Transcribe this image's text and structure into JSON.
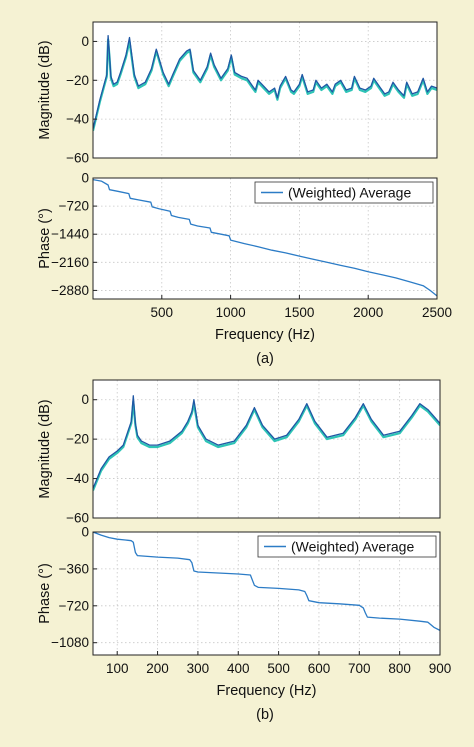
{
  "chart_data": [
    {
      "id": "a-magnitude",
      "type": "line",
      "ylabel": "Magnitude (dB)",
      "xlim": [
        0,
        2500
      ],
      "ylim": [
        -60,
        10
      ],
      "yticks": [
        0,
        -20,
        -40,
        -60
      ],
      "grid": true,
      "series": [
        {
          "color": "#2ec4b6",
          "x": [
            0,
            50,
            100,
            110,
            120,
            130,
            150,
            175,
            200,
            240,
            265,
            300,
            330,
            380,
            425,
            460,
            510,
            550,
            580,
            630,
            680,
            705,
            730,
            780,
            830,
            855,
            880,
            930,
            980,
            1005,
            1030,
            1080,
            1120,
            1160,
            1180,
            1200,
            1240,
            1280,
            1320,
            1340,
            1360,
            1400,
            1440,
            1460,
            1500,
            1520,
            1560,
            1600,
            1620,
            1660,
            1700,
            1740,
            1760,
            1800,
            1840,
            1880,
            1900,
            1940,
            1980,
            2020,
            2040,
            2080,
            2120,
            2150,
            2180,
            2220,
            2260,
            2280,
            2320,
            2360,
            2400,
            2430,
            2460,
            2500
          ],
          "y": [
            -46,
            -31,
            -18,
            1,
            -8,
            -19,
            -23,
            -22,
            -17,
            -8,
            0,
            -18,
            -24,
            -22,
            -15,
            -5,
            -17,
            -23,
            -18,
            -10,
            -6,
            -5,
            -16,
            -21,
            -14,
            -7,
            -13,
            -20,
            -15,
            -8,
            -17,
            -19,
            -20,
            -24,
            -26,
            -21,
            -24,
            -27,
            -25,
            -30,
            -24,
            -19,
            -26,
            -27,
            -23,
            -18,
            -27,
            -26,
            -21,
            -25,
            -23,
            -27,
            -23,
            -21,
            -26,
            -25,
            -19,
            -25,
            -26,
            -24,
            -20,
            -24,
            -28,
            -27,
            -22,
            -26,
            -29,
            -22,
            -28,
            -27,
            -20,
            -27,
            -24,
            -25
          ]
        },
        {
          "color": "#1f57a4",
          "x": [
            0,
            50,
            100,
            110,
            120,
            130,
            150,
            175,
            200,
            240,
            265,
            300,
            330,
            380,
            425,
            460,
            510,
            550,
            580,
            630,
            680,
            705,
            730,
            780,
            830,
            855,
            880,
            930,
            980,
            1005,
            1030,
            1080,
            1120,
            1160,
            1180,
            1200,
            1240,
            1280,
            1320,
            1340,
            1360,
            1400,
            1440,
            1460,
            1500,
            1520,
            1560,
            1600,
            1620,
            1660,
            1700,
            1740,
            1760,
            1800,
            1840,
            1880,
            1900,
            1940,
            1980,
            2020,
            2040,
            2080,
            2120,
            2150,
            2180,
            2220,
            2260,
            2280,
            2320,
            2360,
            2400,
            2430,
            2460,
            2500
          ],
          "y": [
            -45,
            -30,
            -17,
            3,
            -7,
            -18,
            -22,
            -21,
            -16,
            -7,
            2,
            -17,
            -23,
            -21,
            -14,
            -4,
            -16,
            -22,
            -17,
            -9,
            -5,
            -4,
            -15,
            -20,
            -13,
            -6,
            -12,
            -19,
            -14,
            -7,
            -16,
            -18,
            -19,
            -23,
            -25,
            -20,
            -23,
            -26,
            -24,
            -29,
            -23,
            -18,
            -25,
            -26,
            -22,
            -17,
            -26,
            -25,
            -20,
            -24,
            -22,
            -26,
            -22,
            -20,
            -25,
            -24,
            -18,
            -24,
            -25,
            -23,
            -19,
            -23,
            -27,
            -26,
            -21,
            -25,
            -28,
            -21,
            -27,
            -26,
            -19,
            -26,
            -23,
            -24
          ]
        }
      ]
    },
    {
      "id": "a-phase",
      "type": "line",
      "ylabel": "Phase (°)",
      "xlabel": "Frequency (Hz)",
      "xlim": [
        0,
        2500
      ],
      "ylim": [
        -3100,
        0
      ],
      "xticks": [
        500,
        1000,
        1500,
        2000,
        2500
      ],
      "yticks": [
        0,
        -720,
        -1440,
        -2160,
        -2880
      ],
      "ytick_labels": [
        "0",
        "−720",
        "−1440",
        "−2160",
        "−2880"
      ],
      "grid": true,
      "legend_position": "top-right",
      "series": [
        {
          "name": "(Weighted) Average",
          "color": "#2c7cc6",
          "x": [
            0,
            60,
            110,
            120,
            180,
            260,
            270,
            330,
            420,
            430,
            480,
            560,
            570,
            620,
            700,
            710,
            760,
            850,
            860,
            930,
            990,
            1000,
            1100,
            1200,
            1300,
            1400,
            1500,
            1600,
            1700,
            1800,
            1900,
            2000,
            2100,
            2200,
            2300,
            2400,
            2450,
            2500
          ],
          "y": [
            -40,
            -80,
            -180,
            -300,
            -340,
            -400,
            -520,
            -560,
            -620,
            -740,
            -790,
            -850,
            -960,
            -1010,
            -1060,
            -1180,
            -1230,
            -1280,
            -1390,
            -1440,
            -1480,
            -1590,
            -1680,
            -1760,
            -1850,
            -1920,
            -2000,
            -2080,
            -2160,
            -2240,
            -2310,
            -2400,
            -2480,
            -2560,
            -2660,
            -2760,
            -2880,
            -3020
          ]
        }
      ]
    },
    {
      "id": "b-magnitude",
      "type": "line",
      "ylabel": "Magnitude (dB)",
      "xlim": [
        40,
        900
      ],
      "ylim": [
        -60,
        10
      ],
      "yticks": [
        0,
        -20,
        -40,
        -60
      ],
      "grid": true,
      "series": [
        {
          "color": "#2ec4b6",
          "x": [
            40,
            60,
            80,
            100,
            115,
            125,
            135,
            140,
            145,
            150,
            160,
            180,
            200,
            230,
            260,
            275,
            285,
            290,
            300,
            320,
            350,
            390,
            420,
            440,
            460,
            490,
            520,
            550,
            570,
            590,
            620,
            660,
            690,
            710,
            730,
            760,
            800,
            830,
            850,
            870,
            900
          ],
          "y": [
            -46,
            -36,
            -30,
            -27,
            -24,
            -18,
            -12,
            -1,
            -13,
            -19,
            -22,
            -24,
            -24,
            -22,
            -17,
            -12,
            -7,
            -2,
            -14,
            -21,
            -24,
            -22,
            -14,
            -5,
            -14,
            -21,
            -19,
            -11,
            -3,
            -12,
            -20,
            -18,
            -10,
            -3,
            -11,
            -19,
            -17,
            -9,
            -3,
            -6,
            -13
          ]
        },
        {
          "color": "#1f57a4",
          "x": [
            40,
            60,
            80,
            100,
            115,
            125,
            135,
            140,
            145,
            150,
            160,
            180,
            200,
            230,
            260,
            275,
            285,
            290,
            300,
            320,
            350,
            390,
            420,
            440,
            460,
            490,
            520,
            550,
            570,
            590,
            620,
            660,
            690,
            710,
            730,
            760,
            800,
            830,
            850,
            870,
            900
          ],
          "y": [
            -45,
            -35,
            -29,
            -26,
            -23,
            -17,
            -11,
            2,
            -12,
            -18,
            -21,
            -23,
            -23,
            -21,
            -16,
            -11,
            -6,
            0,
            -13,
            -20,
            -23,
            -21,
            -13,
            -4,
            -13,
            -20,
            -18,
            -10,
            -2,
            -11,
            -19,
            -17,
            -9,
            -2,
            -10,
            -18,
            -16,
            -8,
            -2,
            -5,
            -12
          ]
        }
      ]
    },
    {
      "id": "b-phase",
      "type": "line",
      "ylabel": "Phase (°)",
      "xlabel": "Frequency (Hz)",
      "xlim": [
        40,
        900
      ],
      "ylim": [
        -1200,
        0
      ],
      "xticks": [
        100,
        200,
        300,
        400,
        500,
        600,
        700,
        800,
        900
      ],
      "yticks": [
        0,
        -360,
        -720,
        -1080
      ],
      "ytick_labels": [
        "0",
        "−360",
        "−720",
        "−1080"
      ],
      "grid": true,
      "legend_position": "top-right",
      "series": [
        {
          "name": "(Weighted) Average",
          "color": "#2c7cc6",
          "x": [
            40,
            60,
            80,
            100,
            120,
            135,
            140,
            145,
            150,
            200,
            250,
            280,
            285,
            290,
            300,
            350,
            400,
            430,
            435,
            440,
            450,
            500,
            550,
            565,
            570,
            575,
            600,
            650,
            700,
            710,
            715,
            720,
            750,
            800,
            850,
            870,
            885,
            900
          ],
          "y": [
            0,
            -30,
            -55,
            -70,
            -78,
            -85,
            -100,
            -200,
            -230,
            -245,
            -255,
            -270,
            -300,
            -380,
            -390,
            -400,
            -410,
            -420,
            -470,
            -520,
            -540,
            -550,
            -565,
            -580,
            -620,
            -670,
            -690,
            -700,
            -715,
            -740,
            -790,
            -830,
            -840,
            -850,
            -870,
            -880,
            -930,
            -960
          ]
        }
      ]
    }
  ],
  "captions": {
    "a": "(a)",
    "b": "(b)"
  }
}
